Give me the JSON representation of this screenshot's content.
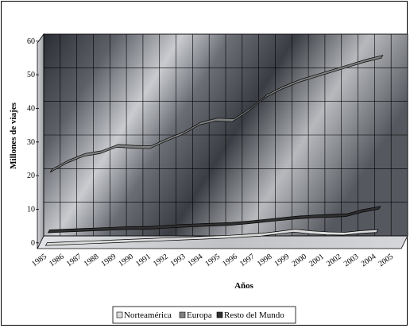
{
  "chart_data": {
    "type": "line",
    "title": "",
    "xlabel": "Años",
    "ylabel": "Millones de viajes",
    "ylim": [
      0,
      60
    ],
    "yticks": [
      "0",
      "10",
      "20",
      "30",
      "40",
      "50",
      "60"
    ],
    "categories": [
      "1985",
      "1986",
      "1987",
      "1988",
      "1989",
      "1990",
      "1991",
      "1992",
      "1993",
      "1994",
      "1995",
      "1996",
      "1997",
      "1998",
      "1999",
      "2000",
      "2001",
      "2002",
      "2003",
      "2004",
      "2005"
    ],
    "series": [
      {
        "name": "Norteamérica",
        "color": "#dcdcdc",
        "values": [
          0.8,
          1.0,
          1.2,
          1.4,
          1.6,
          1.8,
          2.0,
          2.2,
          2.4,
          2.6,
          2.8,
          3.0,
          3.3,
          3.6,
          4.2,
          4.8,
          4.3,
          4.0,
          3.9,
          4.4,
          4.7
        ]
      },
      {
        "name": "Europa",
        "color": "#808080",
        "values": [
          19.8,
          22.5,
          24.5,
          25.3,
          27.2,
          26.9,
          26.8,
          29.0,
          31.0,
          33.8,
          35.0,
          34.8,
          38.0,
          42.0,
          44.5,
          46.5,
          48.0,
          49.5,
          51.0,
          52.5,
          53.7
        ]
      },
      {
        "name": "Resto del Mundo",
        "color": "#303030",
        "values": [
          3.2,
          3.4,
          3.6,
          3.8,
          4.0,
          4.2,
          4.2,
          4.5,
          4.8,
          5.0,
          5.2,
          5.4,
          5.8,
          6.3,
          6.8,
          7.3,
          7.6,
          7.8,
          8.0,
          9.3,
          10.2
        ]
      }
    ],
    "grid": true,
    "legend_position": "bottom"
  }
}
